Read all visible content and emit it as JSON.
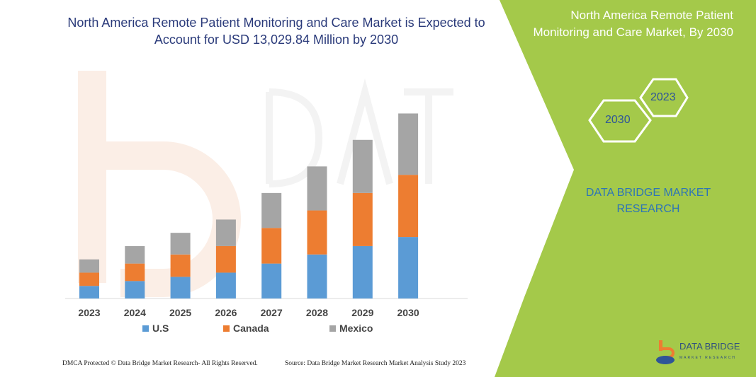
{
  "header": {
    "title": "North America Remote Patient Monitoring and Care Market is Expected to Account for USD 13,029.84 Million by 2030"
  },
  "side_panel": {
    "title": "North America Remote Patient Monitoring and Care Market, By 2030",
    "hex_left": "2030",
    "hex_right": "2023",
    "brand": "DATA BRIDGE MARKET RESEARCH",
    "panel_color": "#a4c94a"
  },
  "footer": {
    "left": "DMCA Protected © Data Bridge Market Research-  All Rights Reserved.",
    "right": "Source: Data Bridge Market Research  Market Analysis Study 2023"
  },
  "logo": {
    "name": "DATA BRIDGE",
    "sub": "MARKET RESEARCH"
  },
  "chart_data": {
    "type": "bar",
    "stacked": true,
    "categories": [
      "2023",
      "2024",
      "2025",
      "2026",
      "2027",
      "2028",
      "2029",
      "2030"
    ],
    "series": [
      {
        "name": "U.S",
        "color": "#5b9bd5",
        "values": [
          885,
          1230,
          1525,
          1820,
          2460,
          3100,
          3690,
          4330
        ]
      },
      {
        "name": "Canada",
        "color": "#ed7d31",
        "values": [
          935,
          1230,
          1575,
          1870,
          2510,
          3100,
          3740,
          4380
        ]
      },
      {
        "name": "Mexico",
        "color": "#a5a5a5",
        "values": [
          935,
          1230,
          1525,
          1870,
          2460,
          3100,
          3740,
          4320
        ]
      }
    ],
    "ylim": [
      0,
      13500
    ],
    "grid": false,
    "legend": "bottom"
  }
}
